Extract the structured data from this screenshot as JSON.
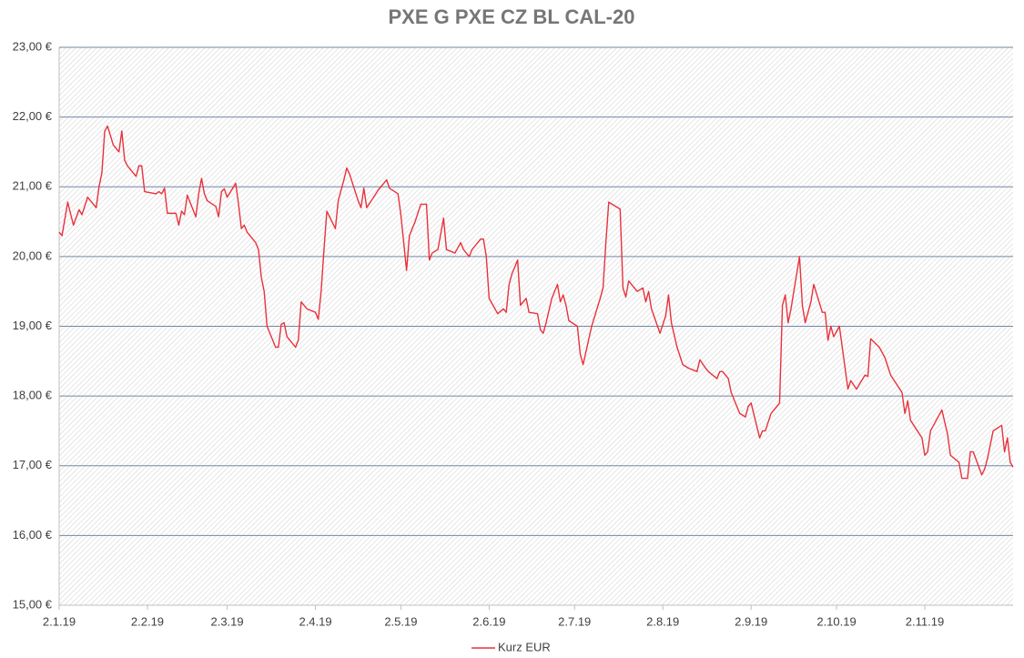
{
  "chart_data": {
    "type": "line",
    "title": "PXE G PXE CZ BL CAL-20",
    "x": [
      "2.1.19",
      "3.1.19",
      "5.1.19",
      "7.1.19",
      "9.1.19",
      "10.1.19",
      "12.1.19",
      "13.1.19",
      "15.1.19",
      "16.1.19",
      "17.1.19",
      "18.1.19",
      "19.1.19",
      "21.1.19",
      "23.1.19",
      "24.1.19",
      "25.1.19",
      "26.1.19",
      "29.1.19",
      "30.1.19",
      "31.1.19",
      "1.2.19",
      "5.2.19",
      "6.2.19",
      "7.2.19",
      "8.2.19",
      "9.2.19",
      "12.2.19",
      "13.2.19",
      "14.2.19",
      "15.2.19",
      "16.2.19",
      "19.2.19",
      "20.2.19",
      "21.2.19",
      "22.2.19",
      "23.2.19",
      "26.2.19",
      "27.2.19",
      "28.2.19",
      "1.3.19",
      "2.3.19",
      "5.3.19",
      "6.3.19",
      "7.3.19",
      "8.3.19",
      "9.3.19",
      "12.3.19",
      "13.3.19",
      "14.3.19",
      "15.3.19",
      "16.3.19",
      "19.3.19",
      "20.3.19",
      "21.3.19",
      "22.3.19",
      "23.3.19",
      "26.3.19",
      "27.3.19",
      "28.3.19",
      "30.3.19",
      "2.4.19",
      "3.4.19",
      "4.4.19",
      "5.4.19",
      "6.4.19",
      "9.4.19",
      "10.4.19",
      "12.4.19",
      "13.4.19",
      "14.4.19",
      "17.4.19",
      "18.4.19",
      "19.4.19",
      "20.4.19",
      "24.4.19",
      "25.4.19",
      "26.4.19",
      "27.4.19",
      "28.4.19",
      "1.5.19",
      "2.5.19",
      "3.5.19",
      "4.5.19",
      "5.5.19",
      "7.5.19",
      "9.5.19",
      "11.5.19",
      "12.5.19",
      "13.5.19",
      "15.5.19",
      "17.5.19",
      "18.5.19",
      "21.5.19",
      "23.5.19",
      "24.5.19",
      "26.5.19",
      "27.5.19",
      "30.5.19",
      "31.5.19",
      "1.6.19",
      "2.6.19",
      "5.6.19",
      "7.6.19",
      "8.6.19",
      "9.6.19",
      "10.6.19",
      "12.6.19",
      "13.6.19",
      "15.6.19",
      "16.6.19",
      "19.6.19",
      "20.6.19",
      "21.6.19",
      "22.6.19",
      "24.6.19",
      "26.6.19",
      "27.6.19",
      "28.6.19",
      "29.6.19",
      "30.6.19",
      "3.7.19",
      "4.7.19",
      "5.7.19",
      "8.7.19",
      "11.7.19",
      "12.7.19",
      "13.7.19",
      "14.7.19",
      "18.7.19",
      "19.7.19",
      "20.7.19",
      "21.7.19",
      "24.7.19",
      "26.7.19",
      "27.7.19",
      "28.7.19",
      "29.7.19",
      "1.8.19",
      "3.8.19",
      "4.8.19",
      "5.8.19",
      "7.8.19",
      "9.8.19",
      "11.8.19",
      "14.8.19",
      "15.8.19",
      "17.8.19",
      "18.8.19",
      "21.8.19",
      "22.8.19",
      "23.8.19",
      "25.8.19",
      "26.8.19",
      "29.8.19",
      "31.8.19",
      "1.9.19",
      "2.9.19",
      "5.9.19",
      "6.9.19",
      "7.9.19",
      "9.9.19",
      "12.9.19",
      "13.9.19",
      "14.9.19",
      "15.9.19",
      "16.9.19",
      "19.9.19",
      "20.9.19",
      "21.9.19",
      "23.9.19",
      "24.9.19",
      "27.9.19",
      "28.9.19",
      "29.9.19",
      "30.9.19",
      "1.10.19",
      "3.10.19",
      "6.10.19",
      "7.10.19",
      "9.10.19",
      "12.10.19",
      "13.10.19",
      "14.10.19",
      "17.10.19",
      "19.10.19",
      "21.10.19",
      "25.10.19",
      "26.10.19",
      "27.10.19",
      "28.10.19",
      "1.11.19",
      "2.11.19",
      "3.11.19",
      "4.11.19",
      "8.11.19",
      "10.11.19",
      "11.11.19",
      "14.11.19",
      "15.11.19",
      "17.11.19",
      "18.11.19",
      "19.11.19",
      "22.11.19",
      "23.11.19",
      "24.11.19",
      "26.11.19",
      "29.11.19",
      "30.11.19",
      "1.12.19",
      "2.12.19",
      "3.12.19"
    ],
    "series": [
      {
        "name": "Kurz EUR",
        "color": "#e8323c",
        "values": [
          20.35,
          20.3,
          20.78,
          20.45,
          20.67,
          20.6,
          20.85,
          20.8,
          20.7,
          21.0,
          21.2,
          21.8,
          21.87,
          21.6,
          21.5,
          21.8,
          21.38,
          21.3,
          21.15,
          21.3,
          21.3,
          20.93,
          20.9,
          20.93,
          20.9,
          20.98,
          20.62,
          20.62,
          20.45,
          20.65,
          20.6,
          20.88,
          20.57,
          20.9,
          21.12,
          20.9,
          20.8,
          20.72,
          20.57,
          20.93,
          20.97,
          20.85,
          21.05,
          20.75,
          20.4,
          20.45,
          20.35,
          20.2,
          20.1,
          19.7,
          19.5,
          19.0,
          18.7,
          18.7,
          19.03,
          19.05,
          18.85,
          18.7,
          18.8,
          19.35,
          19.25,
          19.2,
          19.1,
          19.5,
          20.1,
          20.65,
          20.4,
          20.8,
          21.1,
          21.27,
          21.18,
          20.8,
          20.7,
          20.98,
          20.7,
          20.95,
          21.0,
          21.05,
          21.1,
          20.98,
          20.9,
          20.6,
          20.2,
          19.8,
          20.3,
          20.5,
          20.75,
          20.75,
          19.95,
          20.05,
          20.1,
          20.55,
          20.1,
          20.05,
          20.2,
          20.1,
          20.0,
          20.1,
          20.25,
          20.25,
          20.0,
          19.4,
          19.18,
          19.25,
          19.2,
          19.6,
          19.75,
          19.95,
          19.3,
          19.4,
          19.2,
          19.18,
          18.95,
          18.9,
          19.05,
          19.4,
          19.6,
          19.35,
          19.45,
          19.3,
          19.08,
          19.0,
          18.6,
          18.45,
          19.0,
          19.4,
          19.55,
          20.2,
          20.78,
          20.68,
          19.55,
          19.42,
          19.65,
          19.5,
          19.55,
          19.35,
          19.5,
          19.25,
          18.9,
          19.15,
          19.45,
          19.05,
          18.7,
          18.45,
          18.4,
          18.35,
          18.52,
          18.4,
          18.35,
          18.25,
          18.35,
          18.35,
          18.25,
          18.05,
          17.75,
          17.7,
          17.85,
          17.9,
          17.4,
          17.5,
          17.5,
          17.75,
          17.9,
          19.3,
          19.45,
          19.05,
          19.25,
          20.0,
          19.3,
          19.05,
          19.35,
          19.6,
          19.2,
          19.2,
          18.8,
          19.0,
          18.85,
          19.0,
          18.1,
          18.22,
          18.1,
          18.3,
          18.28,
          18.82,
          18.7,
          18.55,
          18.3,
          18.05,
          17.75,
          17.93,
          17.65,
          17.4,
          17.15,
          17.2,
          17.5,
          17.8,
          17.45,
          17.15,
          17.05,
          16.82,
          16.82,
          17.2,
          17.2,
          16.87,
          16.95,
          17.1,
          17.5,
          17.58,
          17.2,
          17.4,
          17.05,
          16.98
        ]
      }
    ],
    "xlim": [
      "2.1.19",
      "3.12.19"
    ],
    "xticks": [
      "2.1.19",
      "2.2.19",
      "2.3.19",
      "2.4.19",
      "2.5.19",
      "2.6.19",
      "2.7.19",
      "2.8.19",
      "2.9.19",
      "2.10.19",
      "2.11.19"
    ],
    "ylim": [
      15,
      23
    ],
    "yticks": [
      {
        "value": 15,
        "label": "15,00 €"
      },
      {
        "value": 16,
        "label": "16,00 €"
      },
      {
        "value": 17,
        "label": "17,00 €"
      },
      {
        "value": 18,
        "label": "18,00 €"
      },
      {
        "value": 19,
        "label": "19,00 €"
      },
      {
        "value": 20,
        "label": "20,00 €"
      },
      {
        "value": 21,
        "label": "21,00 €"
      },
      {
        "value": 22,
        "label": "22,00 €"
      },
      {
        "value": 23,
        "label": "23,00 €"
      }
    ],
    "grid": true,
    "legend": "bottom"
  }
}
